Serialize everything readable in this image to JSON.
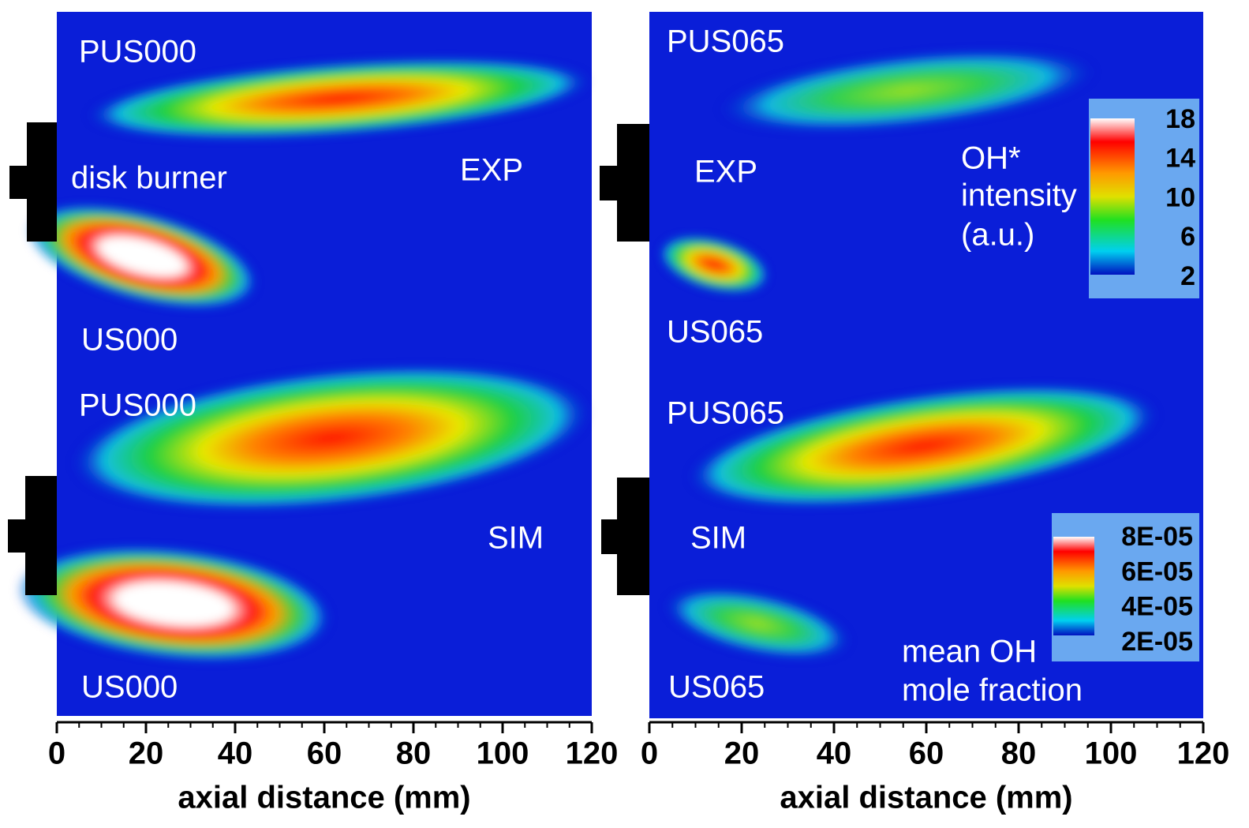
{
  "panels": [
    {
      "annotations": [
        "PUS000",
        "disk burner",
        "EXP",
        "US000",
        "PUS000",
        "SIM",
        "US000"
      ],
      "xlabel": "axial distance (mm)",
      "xlim": [
        0,
        120
      ],
      "xticks": [
        0,
        20,
        40,
        60,
        80,
        100,
        120
      ]
    },
    {
      "annotations": [
        "PUS065",
        "EXP",
        "US065",
        "PUS065",
        "SIM",
        "US065"
      ],
      "xlabel": "axial distance (mm)",
      "xlim": [
        0,
        120
      ],
      "xticks": [
        0,
        20,
        40,
        60,
        80,
        100,
        120
      ]
    }
  ],
  "colorbars": [
    {
      "title": [
        "OH*",
        "intensity",
        "(a.u.)"
      ],
      "ylim": [
        2,
        18
      ],
      "ticks": [
        18,
        14,
        10,
        6,
        2
      ]
    },
    {
      "title": [
        "mean OH",
        "mole fraction"
      ],
      "ylim": [
        2e-05,
        8e-05
      ],
      "ticks": [
        {
          "value": 8e-05,
          "label": "8E-05"
        },
        {
          "value": 6e-05,
          "label": "6E-05"
        },
        {
          "value": 4e-05,
          "label": "4E-05"
        },
        {
          "value": 2e-05,
          "label": "2E-05"
        }
      ]
    }
  ]
}
